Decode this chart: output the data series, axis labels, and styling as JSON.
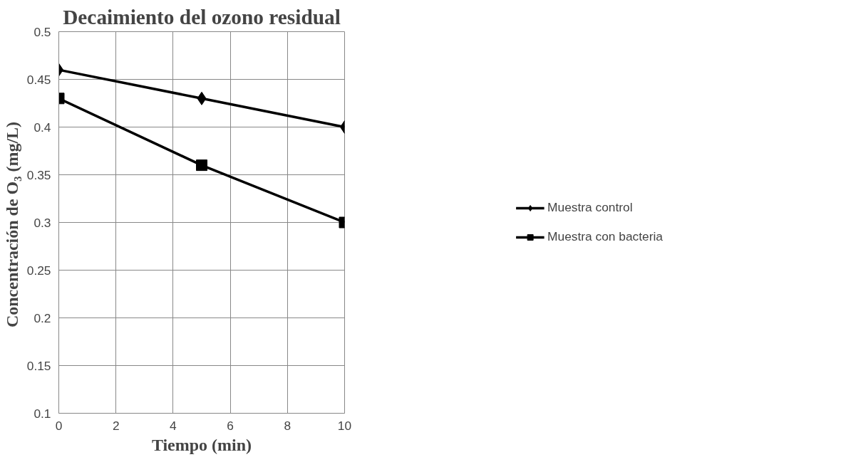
{
  "chart_data": {
    "type": "line",
    "title": "Decaimiento del ozono residual",
    "xlabel": "Tiempo (min)",
    "ylabel": "Concentración de  O₃ (mg/L)",
    "x": [
      0,
      5,
      10
    ],
    "series": [
      {
        "name": "Muestra control",
        "color": "#000000",
        "marker": "diamond",
        "values": [
          0.46,
          0.43,
          0.4
        ]
      },
      {
        "name": "Muestra con bacteria",
        "color": "#000000",
        "marker": "square",
        "values": [
          0.43,
          0.36,
          0.3
        ]
      }
    ],
    "xlim": [
      0,
      10
    ],
    "xticks": [
      0,
      2,
      4,
      6,
      8,
      10
    ],
    "ylim": [
      0.1,
      0.5
    ],
    "yticks": [
      0.1,
      0.15,
      0.2,
      0.25,
      0.3,
      0.35,
      0.4,
      0.45,
      0.5
    ],
    "grid": true,
    "legend": "right",
    "line_style": "solid"
  }
}
